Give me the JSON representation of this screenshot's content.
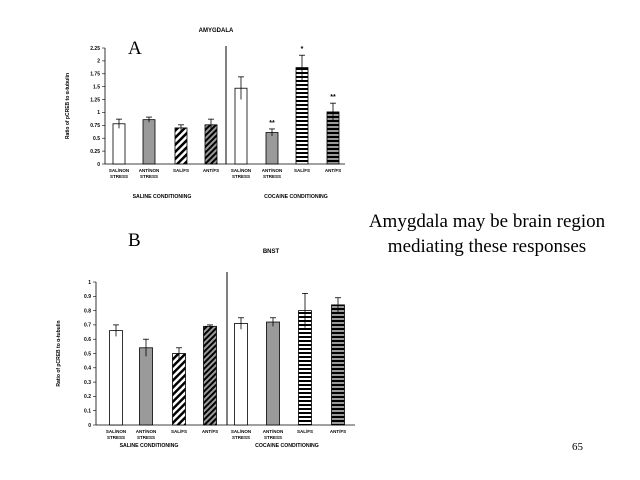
{
  "slide": {
    "panel_a_letter": "A",
    "panel_b_letter": "B",
    "caption_line1": "Amygdala may be brain region",
    "caption_line2": "mediating these responses",
    "page_number": "65"
  },
  "chart_data": [
    {
      "type": "bar",
      "title": "AMYGDALA",
      "ylabel": "Ratio of pCREB to α-tubulin",
      "ylim": [
        0,
        2.25
      ],
      "yticks": [
        "0",
        "0.25",
        "0.5",
        "0.75",
        "1",
        "1.25",
        "1.5",
        "1.75",
        "2",
        "2.25"
      ],
      "categories": [
        [
          "SAL/NON",
          "STRESS"
        ],
        [
          "ANT/NON",
          "STRESS"
        ],
        [
          "SAL/FS"
        ],
        [
          "ANT/FS"
        ],
        [
          "SAL/NON",
          "STRESS"
        ],
        [
          "ANT/NON",
          "STRESS"
        ],
        [
          "SAL/FS"
        ],
        [
          "ANT/FS"
        ]
      ],
      "groups": [
        "SALINE CONDITIONING",
        "COCAINE CONDITIONING"
      ],
      "values": [
        0.78,
        0.86,
        0.7,
        0.76,
        1.47,
        0.61,
        1.87,
        1.01
      ],
      "errors": [
        0.09,
        0.05,
        0.06,
        0.11,
        0.22,
        0.07,
        0.24,
        0.17
      ],
      "patterns": [
        "white",
        "gray",
        "diag",
        "diagdark",
        "white",
        "gray",
        "horiz",
        "horiz"
      ],
      "annotations": [
        "",
        "",
        "",
        "",
        "",
        "**",
        "*",
        "**"
      ]
    },
    {
      "type": "bar",
      "title": "BNST",
      "ylabel": "Ratio of pCREB to α-tubulin",
      "ylim": [
        0,
        1
      ],
      "yticks": [
        "0",
        "0.1",
        "0.2",
        "0.3",
        "0.4",
        "0.5",
        "0.6",
        "0.7",
        "0.8",
        "0.9",
        "1"
      ],
      "categories": [
        [
          "SAL/NON",
          "STRESS"
        ],
        [
          "ANT/NON",
          "STRESS"
        ],
        [
          "SAL/FS"
        ],
        [
          "ANT/FS"
        ],
        [
          "SAL/NON",
          "STRESS"
        ],
        [
          "ANT/NON",
          "STRESS"
        ],
        [
          "SAL/FS"
        ],
        [
          "ANT/FS"
        ]
      ],
      "groups": [
        "SALINE CONDITIONING",
        "COCAINE CONDITIONING"
      ],
      "values": [
        0.66,
        0.54,
        0.5,
        0.69,
        0.71,
        0.72,
        0.8,
        0.84
      ],
      "errors": [
        0.04,
        0.06,
        0.04,
        0.01,
        0.04,
        0.03,
        0.12,
        0.05
      ],
      "patterns": [
        "white",
        "gray",
        "diag",
        "diagdark",
        "white",
        "gray",
        "horiz",
        "horiz"
      ],
      "annotations": [
        "",
        "",
        "",
        "",
        "",
        "",
        "",
        ""
      ]
    }
  ]
}
